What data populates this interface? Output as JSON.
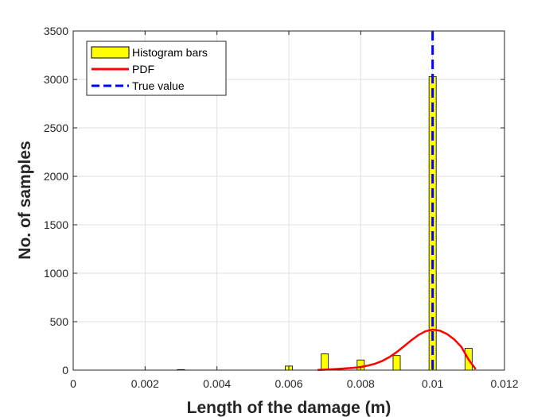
{
  "chart_data": {
    "type": "bar",
    "xlabel": "Length of the damage (m)",
    "ylabel": "No. of samples",
    "xlim": [
      0,
      0.012
    ],
    "ylim": [
      0,
      3500
    ],
    "xticks": [
      0,
      0.002,
      0.004,
      0.006,
      0.008,
      0.01,
      0.012
    ],
    "xtick_labels": [
      "0",
      "0.002",
      "0.004",
      "0.006",
      "0.008",
      "0.01",
      "0.012"
    ],
    "yticks": [
      0,
      500,
      1000,
      1500,
      2000,
      2500,
      3000,
      3500
    ],
    "ytick_labels": [
      "0",
      "500",
      "1000",
      "1500",
      "2000",
      "2500",
      "3000",
      "3500"
    ],
    "grid": true,
    "legend_position": "top-left",
    "series": [
      {
        "name": "Histogram bars",
        "kind": "bar",
        "color": "#ffff00",
        "edgecolor": "#000000",
        "bar_width": 0.0002,
        "x": [
          0.003,
          0.006,
          0.007,
          0.008,
          0.009,
          0.01,
          0.011
        ],
        "values": [
          6,
          42,
          168,
          105,
          150,
          3030,
          225
        ]
      },
      {
        "name": "PDF",
        "kind": "line",
        "color": "#ff0000",
        "style": "solid",
        "x": [
          0.0068,
          0.007,
          0.0072,
          0.0074,
          0.0076,
          0.0078,
          0.008,
          0.0082,
          0.0084,
          0.0086,
          0.0088,
          0.009,
          0.0092,
          0.0094,
          0.0096,
          0.0098,
          0.01,
          0.0102,
          0.0104,
          0.0106,
          0.0108,
          0.011,
          0.0112
        ],
        "values": [
          2,
          5,
          9,
          13,
          18,
          24,
          33,
          47,
          66,
          95,
          135,
          186,
          245,
          306,
          361,
          401,
          418,
          408,
          373,
          318,
          240,
          110,
          10
        ]
      },
      {
        "name": "True value",
        "kind": "vline",
        "color": "#0000ff",
        "style": "dashed",
        "x": 0.01
      }
    ]
  }
}
